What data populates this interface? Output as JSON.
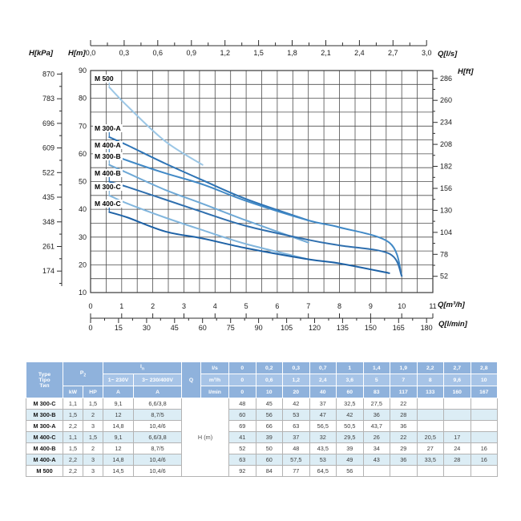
{
  "chart_data": {
    "type": "line",
    "title": "Pump performance curves H(Q)",
    "grid": true,
    "xlim_m3h": [
      0,
      11
    ],
    "ylim_m": [
      10,
      90
    ],
    "axes": {
      "top": {
        "label": "Q[l/s]",
        "tick_labels": [
          "0,0",
          "0,3",
          "0,6",
          "0,9",
          "1,2",
          "1,5",
          "1,8",
          "2,1",
          "2,4",
          "2,7",
          "3,0"
        ],
        "tick_step_ls": 0.3
      },
      "bottom_primary": {
        "label": "Q[m³/h]",
        "ticks": [
          0,
          1,
          2,
          3,
          4,
          5,
          6,
          7,
          8,
          9,
          10,
          11
        ]
      },
      "bottom_secondary": {
        "label": "Q[l/min]",
        "ticks": [
          0,
          15,
          30,
          45,
          60,
          75,
          90,
          105,
          120,
          135,
          150,
          165,
          180
        ]
      },
      "left_kpa": {
        "label": "H[kPa]",
        "ticks": [
          870,
          783,
          696,
          609,
          522,
          435,
          348,
          261,
          174
        ]
      },
      "left_m": {
        "label": "H[m]",
        "ticks": [
          90,
          80,
          70,
          60,
          50,
          40,
          30,
          20,
          10
        ]
      },
      "right_ft": {
        "label": "H[ft]",
        "ticks": [
          286,
          260,
          234,
          208,
          182,
          156,
          130,
          104,
          78,
          52
        ]
      }
    },
    "series": [
      {
        "name": "M 500",
        "color": "#9cc7e6",
        "points": [
          [
            0.6,
            84
          ],
          [
            1.2,
            77
          ],
          [
            2.4,
            64.5
          ],
          [
            3.6,
            56
          ]
        ]
      },
      {
        "name": "M 300-A",
        "color": "#2e74b5",
        "points": [
          [
            0.6,
            66
          ],
          [
            1.2,
            63
          ],
          [
            2.4,
            56.5
          ],
          [
            3.6,
            50.5
          ],
          [
            5,
            43.7
          ],
          [
            7,
            36
          ]
        ]
      },
      {
        "name": "M 400-A",
        "color": "#4189c6",
        "points": [
          [
            0.6,
            60
          ],
          [
            1.2,
            57.5
          ],
          [
            2.4,
            53
          ],
          [
            3.6,
            49
          ],
          [
            5,
            43
          ],
          [
            7,
            36
          ],
          [
            8,
            33.5
          ],
          [
            9.6,
            28
          ],
          [
            10,
            16
          ]
        ]
      },
      {
        "name": "M 300-B",
        "color": "#6fa9d6",
        "points": [
          [
            0.6,
            56
          ],
          [
            1.2,
            53
          ],
          [
            2.4,
            47
          ],
          [
            3.6,
            42
          ],
          [
            5,
            36
          ],
          [
            7,
            28
          ]
        ]
      },
      {
        "name": "M 400-B",
        "color": "#2f6fae",
        "points": [
          [
            0.6,
            50
          ],
          [
            1.2,
            48
          ],
          [
            2.4,
            43.5
          ],
          [
            3.6,
            39
          ],
          [
            5,
            34
          ],
          [
            7,
            29
          ],
          [
            8,
            27
          ],
          [
            9.6,
            24
          ],
          [
            10,
            16
          ]
        ]
      },
      {
        "name": "M 300-C",
        "color": "#82b6dd",
        "points": [
          [
            0.6,
            45
          ],
          [
            1.2,
            42
          ],
          [
            2.4,
            37
          ],
          [
            3.6,
            32.5
          ],
          [
            5,
            27.5
          ],
          [
            7,
            22
          ]
        ]
      },
      {
        "name": "M 400-C",
        "color": "#1e62a6",
        "points": [
          [
            0.6,
            39
          ],
          [
            1.2,
            37
          ],
          [
            2.4,
            32
          ],
          [
            3.6,
            29.5
          ],
          [
            5,
            26
          ],
          [
            7,
            22
          ],
          [
            8,
            20.5
          ],
          [
            9.6,
            17
          ]
        ]
      }
    ]
  },
  "table": {
    "header": {
      "type_lines": [
        "Type",
        "Tipo",
        "Тип"
      ],
      "p2": {
        "base": "P",
        "sub": "2"
      },
      "in": {
        "base": "I",
        "sub": "n"
      },
      "p2_cols": [
        "kW",
        "HP"
      ],
      "in_cols": [
        "1~ 230V",
        "3~ 230/400V"
      ],
      "in_units": [
        "A",
        "A"
      ],
      "q": "Q",
      "unit_rows": [
        "l/s",
        "m³/h",
        "l/min"
      ],
      "q_ls": [
        "0",
        "0,2",
        "0,3",
        "0,7",
        "1",
        "1,4",
        "1,9",
        "2,2",
        "2,7",
        "2,8"
      ],
      "q_m3h": [
        "0",
        "0,6",
        "1,2",
        "2,4",
        "3,6",
        "5",
        "7",
        "8",
        "9,6",
        "10"
      ],
      "q_lmin": [
        "0",
        "10",
        "20",
        "40",
        "60",
        "83",
        "117",
        "133",
        "160",
        "167"
      ]
    },
    "h_m_label": "H (m)",
    "rows": [
      {
        "type": "M 300-C",
        "kw": "1,1",
        "hp": "1,5",
        "a1": "9,1",
        "a3": "6,6/3,8",
        "h": [
          "48",
          "45",
          "42",
          "37",
          "32,5",
          "27,5",
          "22",
          "",
          "",
          ""
        ]
      },
      {
        "type": "M 300-B",
        "kw": "1,5",
        "hp": "2",
        "a1": "12",
        "a3": "8,7/5",
        "h": [
          "60",
          "56",
          "53",
          "47",
          "42",
          "36",
          "28",
          "",
          "",
          ""
        ]
      },
      {
        "type": "M 300-A",
        "kw": "2,2",
        "hp": "3",
        "a1": "14,8",
        "a3": "10,4/6",
        "h": [
          "69",
          "66",
          "63",
          "56,5",
          "50,5",
          "43,7",
          "36",
          "",
          "",
          ""
        ]
      },
      {
        "type": "M 400-C",
        "kw": "1,1",
        "hp": "1,5",
        "a1": "9,1",
        "a3": "6,6/3,8",
        "h": [
          "41",
          "39",
          "37",
          "32",
          "29,5",
          "26",
          "22",
          "20,5",
          "17",
          ""
        ]
      },
      {
        "type": "M 400-B",
        "kw": "1,5",
        "hp": "2",
        "a1": "12",
        "a3": "8,7/5",
        "h": [
          "52",
          "50",
          "48",
          "43,5",
          "39",
          "34",
          "29",
          "27",
          "24",
          "16"
        ]
      },
      {
        "type": "M 400-A",
        "kw": "2,2",
        "hp": "3",
        "a1": "14,8",
        "a3": "10,4/6",
        "h": [
          "63",
          "60",
          "57,5",
          "53",
          "49",
          "43",
          "36",
          "33,5",
          "28",
          "16"
        ]
      },
      {
        "type": "M 500",
        "kw": "2,2",
        "hp": "3",
        "a1": "14,5",
        "a3": "10,4/6",
        "h": [
          "92",
          "84",
          "77",
          "64,5",
          "56",
          "",
          "",
          "",
          "",
          ""
        ]
      }
    ]
  },
  "colors": {
    "header_blue": "#8fb2dc",
    "header_blue_light": "#a7c4e7",
    "row_alt_blue": "#dcedf5",
    "grid_gray": "#4d4d4d"
  }
}
